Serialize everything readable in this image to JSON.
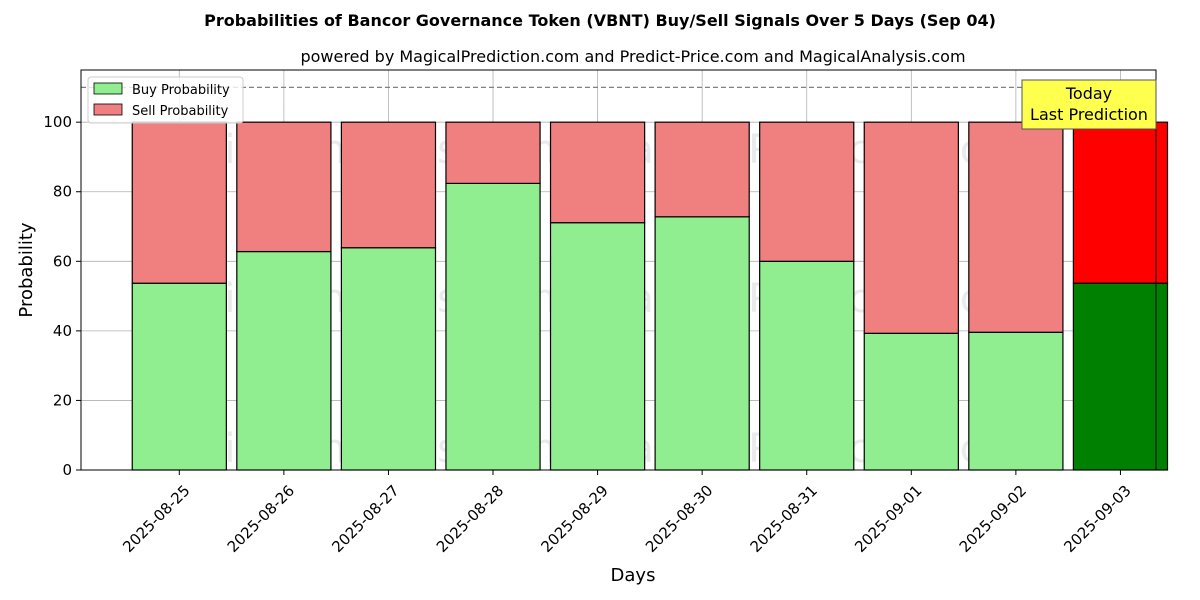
{
  "chart_data": {
    "type": "bar",
    "stacked": true,
    "title": "Probabilities of Bancor Governance Token (VBNT) Buy/Sell Signals Over 5 Days (Sep 04)",
    "subtitle": "powered by MagicalPrediction.com and Predict-Price.com and MagicalAnalysis.com",
    "xlabel": "Days",
    "ylabel": "Probability",
    "ylim": [
      0,
      115
    ],
    "yticks": [
      0,
      20,
      40,
      60,
      80,
      100
    ],
    "grid": true,
    "legend_position": "top-left",
    "categories": [
      "2025-08-25",
      "2025-08-26",
      "2025-08-27",
      "2025-08-28",
      "2025-08-29",
      "2025-08-30",
      "2025-08-31",
      "2025-09-01",
      "2025-09-02",
      "2025-09-03"
    ],
    "series": [
      {
        "name": "Buy Probability",
        "values": [
          53.7,
          62.8,
          63.9,
          82.4,
          71.1,
          72.8,
          60.0,
          39.3,
          39.6,
          53.7
        ],
        "color": "#90ee90",
        "highlight_color": "#008000"
      },
      {
        "name": "Sell Probability",
        "values": [
          46.3,
          37.2,
          36.1,
          17.6,
          28.9,
          27.2,
          40.0,
          60.7,
          60.4,
          46.3
        ],
        "color": "#f08080",
        "highlight_color": "#ff0000"
      }
    ],
    "highlight_index": 9,
    "reference_line": {
      "y": 110,
      "style": "dashed",
      "color": "#808080"
    },
    "annotation": {
      "lines": [
        "Today",
        "Last Prediction"
      ],
      "background": "#ffff4d"
    },
    "watermarks": [
      "MagicalAnalysis.com",
      "MagicalPrediction.com",
      "MagicalAnalysis.com",
      "MagicalPrediction.com",
      "MagicalAnalysis.com",
      "MagicalPrediction.com"
    ]
  }
}
